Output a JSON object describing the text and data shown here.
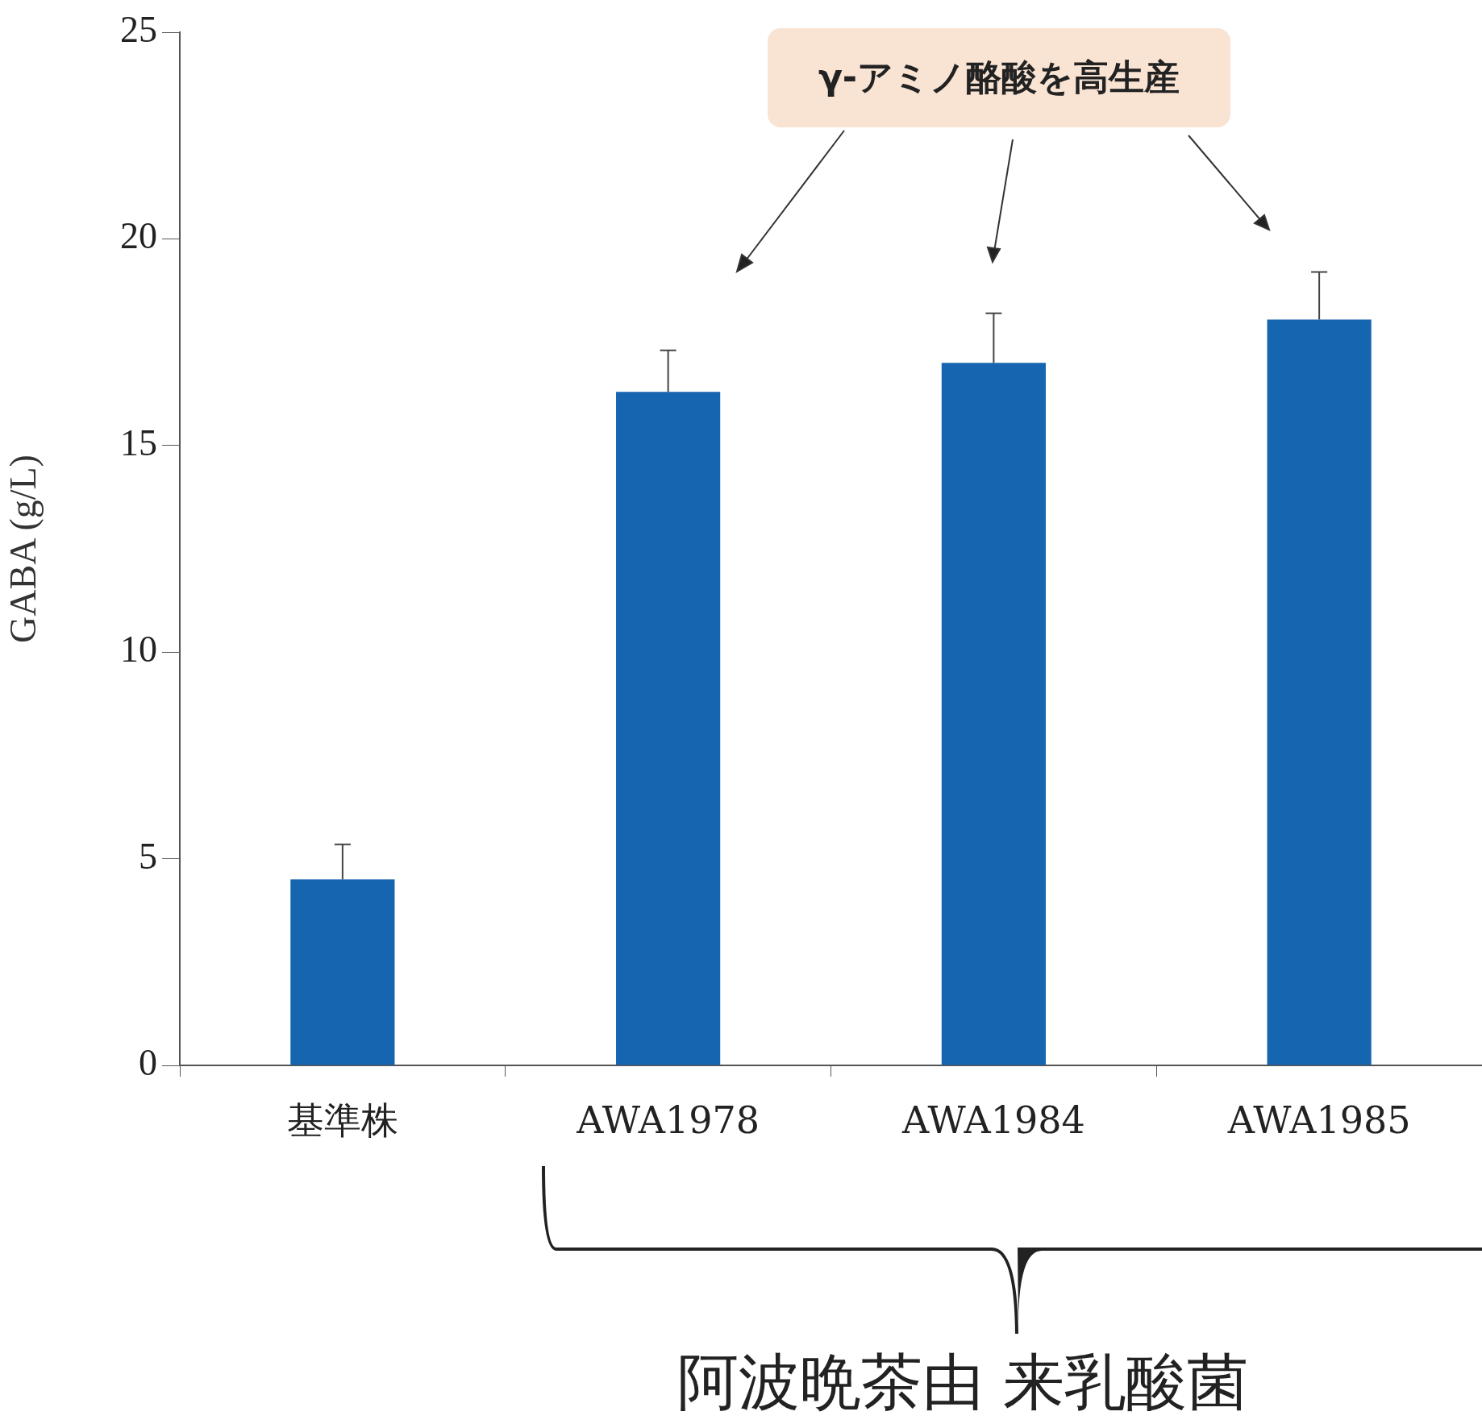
{
  "chart_data": {
    "type": "bar",
    "ylabel": "GABA (g/L)",
    "categories": [
      "基準株",
      "AWA1978",
      "AWA1984",
      "AWA1985"
    ],
    "values": [
      4.5,
      16.3,
      17.0,
      18.05
    ],
    "errors": [
      [
        4.5,
        5.35
      ],
      [
        16.3,
        17.3
      ],
      [
        17.0,
        18.2
      ],
      [
        18.05,
        19.2
      ]
    ],
    "color": "#1565b0",
    "ylim": [
      0,
      25
    ],
    "yticks": [
      0,
      5,
      10,
      15,
      20,
      25
    ],
    "grid": false,
    "legend": false,
    "annotations": [
      "γ-アミノ酪酸を高生産",
      "阿波晩茶由 来乳酸菌"
    ]
  }
}
